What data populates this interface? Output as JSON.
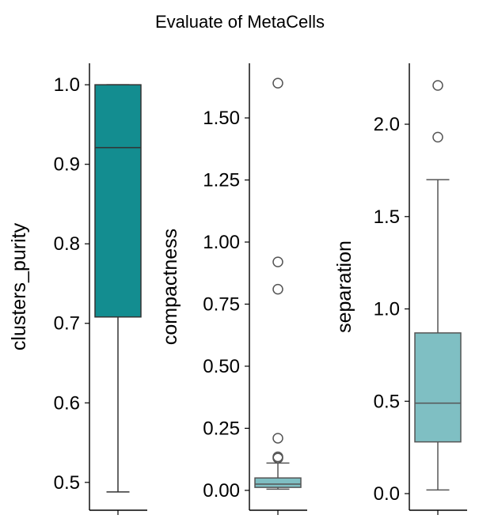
{
  "figure": {
    "title": "Evaluate of MetaCells"
  },
  "chart_data": [
    {
      "type": "box",
      "ylabel": "clusters_purity",
      "ylim": [
        0.465,
        1.027
      ],
      "yticks": [
        0.5,
        0.6,
        0.7,
        0.8,
        0.9,
        1.0
      ],
      "ytick_labels": [
        "0.5",
        "0.6",
        "0.7",
        "0.8",
        "0.9",
        "1.0"
      ],
      "box": {
        "whisker_low": 0.488,
        "q1": 0.708,
        "median": 0.921,
        "q3": 1.0,
        "whisker_high": 1.0,
        "fliers": []
      },
      "color": "#138d90",
      "xtick_labels": [
        ""
      ]
    },
    {
      "type": "box",
      "ylabel": "compactness",
      "ylim": [
        -0.08,
        1.72
      ],
      "yticks": [
        0.0,
        0.25,
        0.5,
        0.75,
        1.0,
        1.25,
        1.5
      ],
      "ytick_labels": [
        "0.00",
        "0.25",
        "0.50",
        "0.75",
        "1.00",
        "1.25",
        "1.50"
      ],
      "box": {
        "whisker_low": 0.005,
        "q1": 0.012,
        "median": 0.025,
        "q3": 0.05,
        "whisker_high": 0.11,
        "fliers": [
          0.13,
          0.135,
          0.21,
          0.81,
          0.92,
          1.64
        ]
      },
      "color": "#7fbfc3",
      "xtick_labels": [
        ""
      ]
    },
    {
      "type": "box",
      "ylabel": "separation",
      "ylim": [
        -0.09,
        2.33
      ],
      "yticks": [
        0.0,
        0.5,
        1.0,
        1.5,
        2.0
      ],
      "ytick_labels": [
        "0.0",
        "0.5",
        "1.0",
        "1.5",
        "2.0"
      ],
      "box": {
        "whisker_low": 0.02,
        "q1": 0.28,
        "median": 0.49,
        "q3": 0.87,
        "whisker_high": 1.7,
        "fliers": [
          1.93,
          2.21
        ]
      },
      "color": "#7fbfc3",
      "xtick_labels": [
        ""
      ]
    }
  ]
}
